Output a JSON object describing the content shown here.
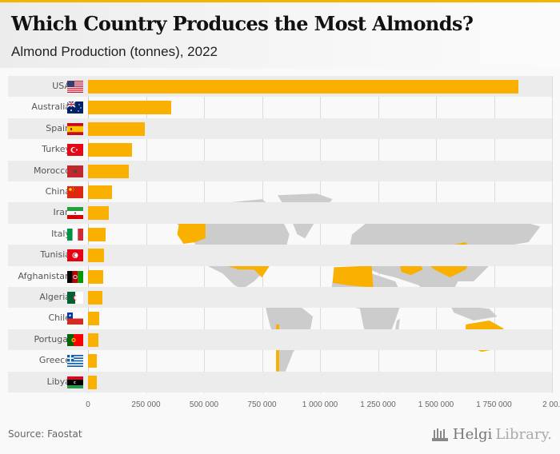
{
  "header": {
    "title": "Which Country Produces the Most Almonds?",
    "subtitle": "Almond Production (tonnes), 2022"
  },
  "footer": {
    "source": "Source: Faostat",
    "logo_main": "Helgi",
    "logo_suffix": "Library."
  },
  "colors": {
    "bar": "#f9b000",
    "accent_top": "#f5b400",
    "map_land": "#cccccc",
    "map_highlight": "#f9b000"
  },
  "axis": {
    "ticks": [
      "0",
      "250 000",
      "500 000",
      "750 000",
      "1 000 000",
      "1 250 000",
      "1 500 000",
      "1 750 000",
      "2 00..."
    ]
  },
  "chart_data": {
    "type": "bar",
    "orientation": "horizontal",
    "title": "Which Country Produces the Most Almonds?",
    "subtitle": "Almond Production (tonnes), 2022",
    "xlabel": "",
    "ylabel": "",
    "xlim": [
      0,
      2000000
    ],
    "grid": true,
    "categories": [
      "USA",
      "Australia",
      "Spain",
      "Turkey",
      "Morocco",
      "China",
      "Iran",
      "Italy",
      "Tunisia",
      "Afghanistan",
      "Algeria",
      "Chile",
      "Portugal",
      "Greece",
      "Libya"
    ],
    "values": [
      1855000,
      359000,
      245000,
      190000,
      176000,
      103000,
      90000,
      76000,
      69000,
      65000,
      62000,
      48000,
      45000,
      38000,
      38000
    ],
    "x_tick_labels": [
      "0",
      "250 000",
      "500 000",
      "750 000",
      "1 000 000",
      "1 250 000",
      "1 500 000",
      "1 750 000",
      "2 00..."
    ],
    "source": "Faostat"
  }
}
